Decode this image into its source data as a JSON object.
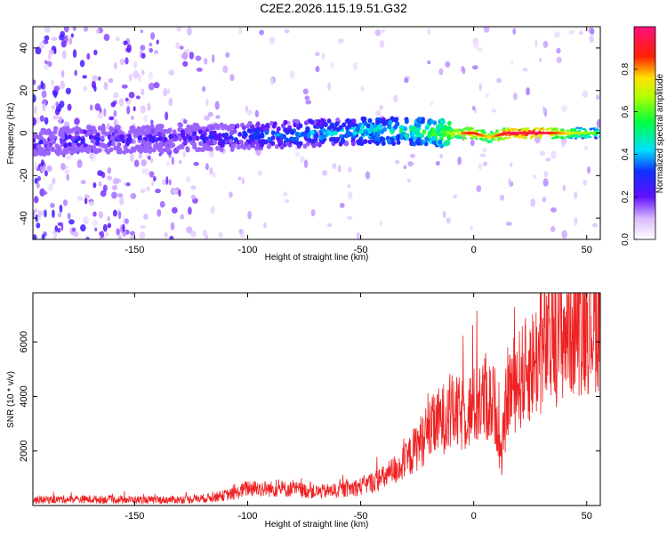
{
  "title": "C2E2.2026.115.19.51.G32",
  "colors": {
    "snr_line": "#ee2222",
    "axis": "#000000"
  },
  "chart_data": [
    {
      "type": "heatmap",
      "title": "C2E2.2026.115.19.51.G32",
      "xlabel": "Height of straight line (km)",
      "ylabel": "Frequency (Hz)",
      "xlim": [
        -195,
        56
      ],
      "ylim": [
        -50,
        50
      ],
      "x_ticks": [
        -150,
        -100,
        -50,
        0,
        50
      ],
      "y_ticks": [
        -40,
        -20,
        0,
        20,
        40
      ],
      "colorbar": {
        "label": "Normalized spectral amplitude",
        "range": [
          0,
          1
        ],
        "ticks": [
          "0.0",
          "0.2",
          "0.4",
          "0.6",
          "0.8"
        ],
        "colormap": "rainbow-white"
      },
      "ridge": [
        {
          "x": -190,
          "freq": -4,
          "amp": 0.3
        },
        {
          "x": -170,
          "freq": -3,
          "amp": 0.32
        },
        {
          "x": -150,
          "freq": -3,
          "amp": 0.3
        },
        {
          "x": -130,
          "freq": -2,
          "amp": 0.28
        },
        {
          "x": -110,
          "freq": -2,
          "amp": 0.35
        },
        {
          "x": -90,
          "freq": -1,
          "amp": 0.42
        },
        {
          "x": -70,
          "freq": 0,
          "amp": 0.45
        },
        {
          "x": -50,
          "freq": 1,
          "amp": 0.5
        },
        {
          "x": -30,
          "freq": 1,
          "amp": 0.55
        },
        {
          "x": -15,
          "freq": 0,
          "amp": 0.65
        },
        {
          "x": 0,
          "freq": 0,
          "amp": 0.9
        },
        {
          "x": 7,
          "freq": -2,
          "amp": 0.75
        },
        {
          "x": 15,
          "freq": 0,
          "amp": 0.95
        },
        {
          "x": 30,
          "freq": 0,
          "amp": 0.95
        },
        {
          "x": 45,
          "freq": 0,
          "amp": 0.7
        },
        {
          "x": 55,
          "freq": 0,
          "amp": 0.6
        }
      ]
    },
    {
      "type": "line",
      "xlabel": "Height of straight line (km)",
      "ylabel": "SNR (10 * v/v)",
      "xlim": [
        -195,
        56
      ],
      "ylim": [
        0,
        7800
      ],
      "x_ticks": [
        -150,
        -100,
        -50,
        0,
        50
      ],
      "y_ticks": [
        2000,
        4000,
        6000
      ],
      "series": [
        {
          "color": "#ee2222",
          "x": [
            -195,
            -180,
            -160,
            -140,
            -125,
            -115,
            -105,
            -100,
            -90,
            -80,
            -70,
            -60,
            -50,
            -40,
            -30,
            -25,
            -20,
            -15,
            -10,
            -5,
            0,
            5,
            10,
            12,
            15,
            20,
            25,
            30,
            35,
            40,
            45,
            50,
            56
          ],
          "y": [
            200,
            230,
            220,
            200,
            230,
            300,
            450,
            650,
            600,
            600,
            500,
            550,
            700,
            1000,
            1600,
            2200,
            2700,
            3100,
            3400,
            3300,
            3600,
            3900,
            3600,
            1500,
            4200,
            4600,
            5100,
            5600,
            6000,
            6400,
            6700,
            6800,
            7000
          ]
        }
      ]
    }
  ]
}
